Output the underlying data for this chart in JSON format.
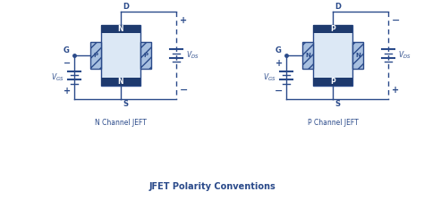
{
  "bg_color": "#ffffff",
  "line_color": "#2a4a8a",
  "fill_dark": "#1e3a6e",
  "fill_light": "#dce8f5",
  "fill_gate": "#a8c0e0",
  "title": "JFET Polarity Conventions",
  "label_n": "N Channel JEFT",
  "label_p": "P Channel JEFT"
}
